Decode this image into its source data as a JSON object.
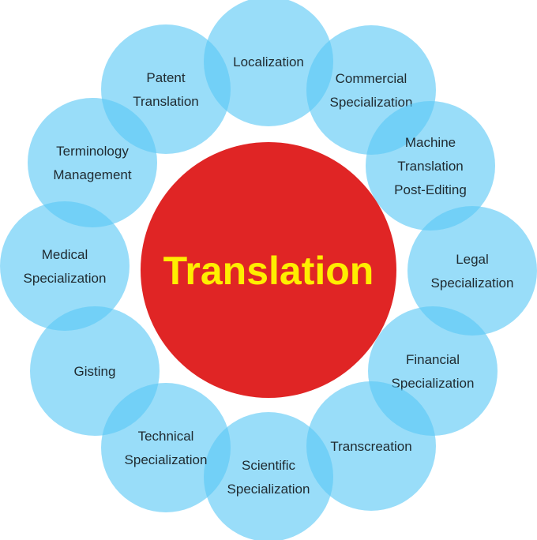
{
  "center": {
    "label": "Translation"
  },
  "petals": [
    {
      "id": "localization",
      "lines": [
        "Localization"
      ]
    },
    {
      "id": "commercial-specialization",
      "lines": [
        "Commercial",
        "Specialization"
      ]
    },
    {
      "id": "machine-translation-post-editing",
      "lines": [
        "Machine",
        "Translation",
        "Post-Editing"
      ]
    },
    {
      "id": "legal-specialization",
      "lines": [
        "Legal",
        "Specialization"
      ]
    },
    {
      "id": "financial-specialization",
      "lines": [
        "Financial",
        "Specialization"
      ]
    },
    {
      "id": "transcreation",
      "lines": [
        "Transcreation"
      ]
    },
    {
      "id": "scientific-specialization",
      "lines": [
        "Scientific",
        "Specialization"
      ]
    },
    {
      "id": "technical-specialization",
      "lines": [
        "Technical",
        "Specialization"
      ]
    },
    {
      "id": "gisting",
      "lines": [
        "Gisting"
      ]
    },
    {
      "id": "medical-specialization",
      "lines": [
        "Medical",
        "Specialization"
      ]
    },
    {
      "id": "terminology-management",
      "lines": [
        "Terminology",
        "Management"
      ]
    },
    {
      "id": "patent-translation",
      "lines": [
        "Patent",
        "Translation"
      ]
    }
  ],
  "colors": {
    "petal": "#5ac8f5",
    "center": "#e02525",
    "center_text": "#ffee00",
    "petal_text": "#1f2a30"
  }
}
